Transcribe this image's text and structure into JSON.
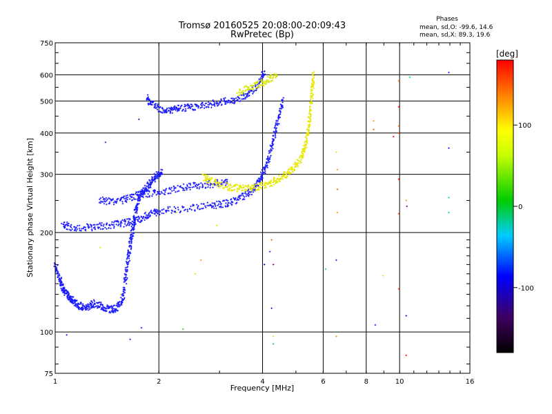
{
  "chart_data": {
    "type": "scatter",
    "title": "Tromsø 20160525 20:08:00-20:09:43",
    "subtitle": "RwPretec (Bp)",
    "xlabel": "Frequency [MHz]",
    "ylabel": "Stationary phase Virtual Height [km]",
    "x_scale": "log",
    "y_scale": "log",
    "xlim": [
      1,
      16
    ],
    "ylim": [
      75,
      750
    ],
    "x_ticks": [
      1,
      2,
      4,
      6,
      8,
      10,
      16
    ],
    "x_tick_labels": [
      "1",
      "2",
      "4",
      "6",
      "8",
      "10",
      "16"
    ],
    "y_ticks": [
      75,
      100,
      200,
      300,
      400,
      500,
      600,
      750
    ],
    "y_tick_labels": [
      "75",
      "100",
      "200",
      "300",
      "400",
      "500",
      "600",
      "750"
    ],
    "grid": true,
    "phase_info": {
      "title": "Phases",
      "line_o": "mean, sd,O: -99.6, 14.6",
      "line_x": "mean, sd,X:  89.3, 19.6"
    },
    "colorbar": {
      "label": "[deg]",
      "range": [
        -180,
        180
      ],
      "ticks": [
        100,
        0,
        -100
      ],
      "tick_labels": [
        "100",
        "0",
        "-100"
      ]
    },
    "traces": [
      {
        "name_hint": "O-mode low layer",
        "color": "#1a1aff",
        "points": [
          [
            1.0,
            160
          ],
          [
            1.02,
            150
          ],
          [
            1.04,
            140
          ],
          [
            1.06,
            135
          ],
          [
            1.08,
            130
          ],
          [
            1.1,
            128
          ],
          [
            1.12,
            125
          ],
          [
            1.15,
            122
          ],
          [
            1.18,
            120
          ],
          [
            1.22,
            118
          ],
          [
            1.26,
            120
          ],
          [
            1.3,
            122
          ],
          [
            1.35,
            120
          ],
          [
            1.4,
            118
          ],
          [
            1.45,
            117
          ],
          [
            1.5,
            118
          ],
          [
            1.55,
            122
          ],
          [
            1.58,
            130
          ],
          [
            1.6,
            145
          ],
          [
            1.62,
            160
          ],
          [
            1.64,
            175
          ],
          [
            1.66,
            190
          ],
          [
            1.68,
            205
          ],
          [
            1.7,
            222
          ],
          [
            1.72,
            240
          ],
          [
            1.75,
            255
          ],
          [
            1.8,
            265
          ],
          [
            1.85,
            275
          ],
          [
            1.9,
            285
          ],
          [
            1.95,
            295
          ],
          [
            2.0,
            300
          ],
          [
            2.05,
            305
          ]
        ]
      },
      {
        "name_hint": "O-mode F trace",
        "color": "#1a1aff",
        "points": [
          [
            1.05,
            212
          ],
          [
            1.1,
            208
          ],
          [
            1.2,
            207
          ],
          [
            1.3,
            208
          ],
          [
            1.4,
            210
          ],
          [
            1.5,
            212
          ],
          [
            1.6,
            214
          ],
          [
            1.7,
            217
          ],
          [
            1.8,
            222
          ],
          [
            1.9,
            228
          ],
          [
            2.0,
            232
          ],
          [
            2.2,
            235
          ],
          [
            2.5,
            238
          ],
          [
            2.8,
            241
          ],
          [
            3.0,
            243
          ],
          [
            3.2,
            246
          ],
          [
            3.4,
            252
          ],
          [
            3.6,
            260
          ],
          [
            3.8,
            272
          ],
          [
            3.9,
            285
          ],
          [
            4.0,
            300
          ],
          [
            4.1,
            318
          ],
          [
            4.2,
            345
          ],
          [
            4.3,
            380
          ],
          [
            4.4,
            420
          ],
          [
            4.5,
            465
          ],
          [
            4.6,
            510
          ]
        ]
      },
      {
        "name_hint": "O-mode high trace",
        "color": "#1a1aff",
        "points": [
          [
            1.85,
            510
          ],
          [
            1.9,
            490
          ],
          [
            2.0,
            475
          ],
          [
            2.1,
            468
          ],
          [
            2.2,
            470
          ],
          [
            2.3,
            475
          ],
          [
            2.45,
            478
          ],
          [
            2.6,
            482
          ],
          [
            2.8,
            488
          ],
          [
            3.0,
            495
          ],
          [
            3.2,
            500
          ],
          [
            3.4,
            508
          ],
          [
            3.6,
            520
          ],
          [
            3.8,
            545
          ],
          [
            3.95,
            580
          ],
          [
            4.05,
            620
          ]
        ]
      },
      {
        "name_hint": "O-mode 250 km trace",
        "color": "#1a1aff",
        "points": [
          [
            1.35,
            250
          ],
          [
            1.45,
            248
          ],
          [
            1.55,
            250
          ],
          [
            1.65,
            255
          ],
          [
            1.75,
            260
          ],
          [
            1.85,
            262
          ],
          [
            2.0,
            265
          ],
          [
            2.2,
            270
          ],
          [
            2.4,
            275
          ],
          [
            2.6,
            278
          ],
          [
            2.8,
            280
          ],
          [
            3.0,
            282
          ],
          [
            3.2,
            283
          ]
        ]
      },
      {
        "name_hint": "X-mode trace",
        "color": "#e6e600",
        "points": [
          [
            2.7,
            295
          ],
          [
            2.8,
            288
          ],
          [
            3.0,
            280
          ],
          [
            3.2,
            275
          ],
          [
            3.4,
            272
          ],
          [
            3.6,
            272
          ],
          [
            3.8,
            274
          ],
          [
            4.0,
            277
          ],
          [
            4.2,
            282
          ],
          [
            4.4,
            288
          ],
          [
            4.6,
            296
          ],
          [
            4.8,
            305
          ],
          [
            5.0,
            318
          ],
          [
            5.2,
            340
          ],
          [
            5.3,
            360
          ],
          [
            5.4,
            390
          ],
          [
            5.45,
            420
          ],
          [
            5.5,
            460
          ],
          [
            5.55,
            510
          ],
          [
            5.6,
            560
          ],
          [
            5.62,
            610
          ]
        ]
      },
      {
        "name_hint": "X-mode upper",
        "color": "#d8e600",
        "points": [
          [
            3.4,
            530
          ],
          [
            3.6,
            545
          ],
          [
            3.8,
            555
          ],
          [
            4.0,
            568
          ],
          [
            4.2,
            585
          ],
          [
            4.4,
            600
          ]
        ]
      }
    ],
    "scatter_points": [
      {
        "x": 1.08,
        "y": 98,
        "color": "#1a1aff"
      },
      {
        "x": 1.65,
        "y": 95,
        "color": "#1a1aff"
      },
      {
        "x": 1.78,
        "y": 103,
        "color": "#1a1aff"
      },
      {
        "x": 1.4,
        "y": 375,
        "color": "#1a1aff"
      },
      {
        "x": 1.75,
        "y": 440,
        "color": "#1a1aff"
      },
      {
        "x": 2.35,
        "y": 102,
        "color": "#33cc33"
      },
      {
        "x": 2.55,
        "y": 150,
        "color": "#e6e600"
      },
      {
        "x": 2.65,
        "y": 165,
        "color": "#e6a000"
      },
      {
        "x": 4.25,
        "y": 190,
        "color": "#ff6600"
      },
      {
        "x": 4.2,
        "y": 175,
        "color": "#1a1aff"
      },
      {
        "x": 4.3,
        "y": 160,
        "color": "#800080"
      },
      {
        "x": 4.05,
        "y": 160,
        "color": "#000080"
      },
      {
        "x": 4.25,
        "y": 118,
        "color": "#1a1aff"
      },
      {
        "x": 4.3,
        "y": 97,
        "color": "#e6e600"
      },
      {
        "x": 4.3,
        "y": 92,
        "color": "#00cccc"
      },
      {
        "x": 6.1,
        "y": 155,
        "color": "#00cccc"
      },
      {
        "x": 6.55,
        "y": 165,
        "color": "#1a1aff"
      },
      {
        "x": 6.55,
        "y": 97,
        "color": "#e6a000"
      },
      {
        "x": 6.55,
        "y": 350,
        "color": "#e6e600"
      },
      {
        "x": 6.6,
        "y": 310,
        "color": "#e6a000"
      },
      {
        "x": 6.6,
        "y": 270,
        "color": "#ff6600"
      },
      {
        "x": 6.6,
        "y": 230,
        "color": "#e6a000"
      },
      {
        "x": 8.4,
        "y": 435,
        "color": "#e6a000"
      },
      {
        "x": 8.4,
        "y": 410,
        "color": "#ff6600"
      },
      {
        "x": 8.5,
        "y": 105,
        "color": "#1a1aff"
      },
      {
        "x": 8.95,
        "y": 148,
        "color": "#e6e600"
      },
      {
        "x": 9.6,
        "y": 390,
        "color": "#ff0000"
      },
      {
        "x": 9.95,
        "y": 575,
        "color": "#ff6600"
      },
      {
        "x": 9.95,
        "y": 480,
        "color": "#ff0000"
      },
      {
        "x": 9.95,
        "y": 420,
        "color": "#ff6600"
      },
      {
        "x": 9.95,
        "y": 400,
        "color": "#ff3300"
      },
      {
        "x": 9.95,
        "y": 290,
        "color": "#ff0000"
      },
      {
        "x": 9.95,
        "y": 228,
        "color": "#ff3300"
      },
      {
        "x": 9.95,
        "y": 135,
        "color": "#ff3300"
      },
      {
        "x": 10.45,
        "y": 250,
        "color": "#e6a000"
      },
      {
        "x": 10.5,
        "y": 240,
        "color": "#800080"
      },
      {
        "x": 10.45,
        "y": 112,
        "color": "#1a1aff"
      },
      {
        "x": 10.45,
        "y": 85,
        "color": "#ff0000"
      },
      {
        "x": 10.7,
        "y": 590,
        "color": "#00cccc"
      },
      {
        "x": 13.9,
        "y": 610,
        "color": "#1a1aff"
      },
      {
        "x": 13.9,
        "y": 360,
        "color": "#1a1aff"
      },
      {
        "x": 13.9,
        "y": 255,
        "color": "#00cccc"
      },
      {
        "x": 13.9,
        "y": 230,
        "color": "#00cccc"
      },
      {
        "x": 1.35,
        "y": 180,
        "color": "#e6e600"
      },
      {
        "x": 1.55,
        "y": 130,
        "color": "#e6e600"
      },
      {
        "x": 2.25,
        "y": 230,
        "color": "#e6e600"
      },
      {
        "x": 2.95,
        "y": 210,
        "color": "#e6e600"
      }
    ]
  }
}
